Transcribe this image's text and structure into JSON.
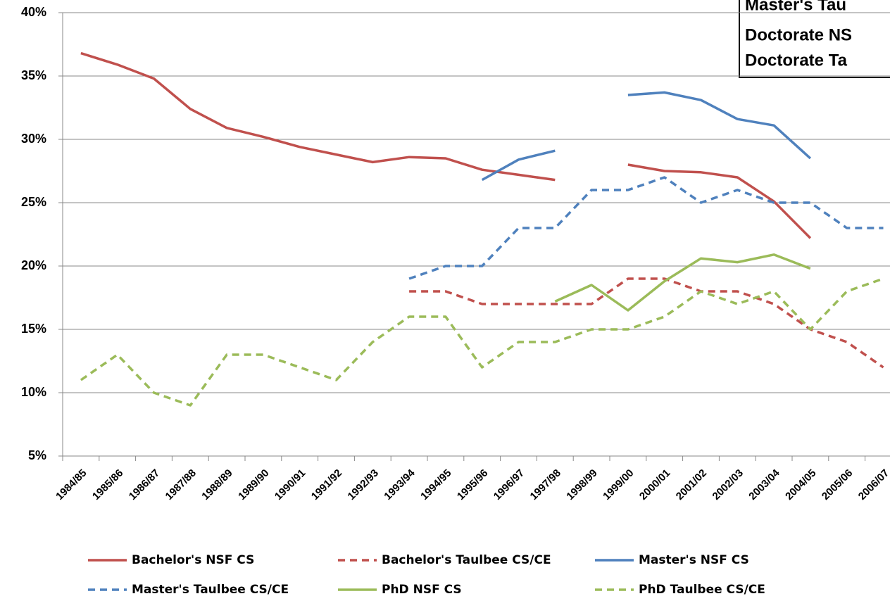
{
  "chart_data": {
    "type": "line",
    "annotations": [
      "Master's Tau",
      "Doctorate NS",
      "Doctorate Ta"
    ],
    "categories": [
      "1984/85",
      "1985/86",
      "1986/87",
      "1987/88",
      "1988/89",
      "1989/90",
      "1990/91",
      "1991/92",
      "1992/93",
      "1993/94",
      "1994/95",
      "1995/96",
      "1996/97",
      "1997/98",
      "1998/99",
      "1999/00",
      "2000/01",
      "2001/02",
      "2002/03",
      "2003/04",
      "2004/05",
      "2005/06",
      "2006/07"
    ],
    "series": [
      {
        "name": "Bachelor's NSF CS",
        "color": "#c0504d",
        "dashed": false,
        "values": [
          36.8,
          35.9,
          34.8,
          32.4,
          30.9,
          30.2,
          29.4,
          28.8,
          28.2,
          28.6,
          28.5,
          27.6,
          27.2,
          26.8,
          null,
          28.0,
          27.5,
          27.4,
          27.0,
          25.1,
          22.2,
          null,
          null
        ]
      },
      {
        "name": "Bachelor's Taulbee CS/CE",
        "color": "#c0504d",
        "dashed": true,
        "values": [
          null,
          null,
          null,
          null,
          null,
          null,
          null,
          null,
          null,
          18,
          18,
          17,
          17,
          17,
          17,
          19,
          19,
          18,
          18,
          17,
          15,
          14,
          12
        ]
      },
      {
        "name": "Master's NSF CS",
        "color": "#4f81bd",
        "dashed": false,
        "values": [
          null,
          null,
          null,
          null,
          null,
          null,
          null,
          null,
          null,
          null,
          null,
          26.8,
          28.4,
          29.1,
          null,
          33.5,
          33.7,
          33.1,
          31.6,
          31.1,
          28.5,
          null,
          null
        ]
      },
      {
        "name": "Master's Taulbee CS/CE",
        "color": "#4f81bd",
        "dashed": true,
        "values": [
          null,
          null,
          null,
          null,
          null,
          null,
          null,
          null,
          null,
          19,
          20,
          20,
          23,
          23,
          26,
          26,
          27,
          25,
          26,
          25,
          25,
          23,
          23
        ]
      },
      {
        "name": "PhD NSF CS",
        "color": "#9bbb59",
        "dashed": false,
        "values": [
          null,
          null,
          null,
          null,
          null,
          null,
          null,
          null,
          null,
          null,
          null,
          null,
          null,
          17.2,
          18.5,
          16.5,
          18.8,
          20.6,
          20.3,
          20.9,
          19.8,
          null,
          null
        ]
      },
      {
        "name": "PhD Taulbee CS/CE",
        "color": "#9bbb59",
        "dashed": true,
        "values": [
          11,
          13,
          10,
          9,
          13,
          13,
          12,
          11,
          14,
          16,
          16,
          12,
          14,
          14,
          15,
          15,
          16,
          18,
          17,
          18,
          15,
          18,
          19
        ]
      }
    ],
    "ylim": [
      5,
      40
    ],
    "yticks": [
      {
        "value": 5,
        "label": "5%"
      },
      {
        "value": 10,
        "label": "10%"
      },
      {
        "value": 15,
        "label": "15%"
      },
      {
        "value": 20,
        "label": "20%"
      },
      {
        "value": 25,
        "label": "25%"
      },
      {
        "value": 30,
        "label": "30%"
      },
      {
        "value": 35,
        "label": "35%"
      },
      {
        "value": 40,
        "label": "40%"
      }
    ],
    "grid": true,
    "legend": "bottom"
  }
}
